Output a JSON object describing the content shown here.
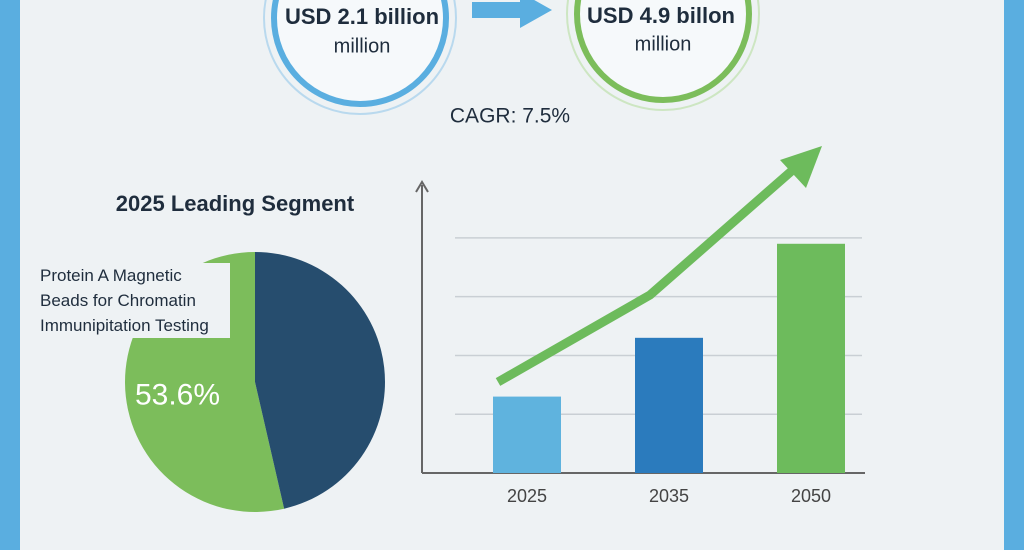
{
  "header": {
    "start_value": "USD 2.1 billion",
    "start_unit": "million",
    "end_value": "USD 4.9 billon",
    "end_unit": "million",
    "cagr": "CAGR: 7.5%"
  },
  "chart_data": [
    {
      "type": "pie",
      "title": "2025 Leading Segment",
      "categories": [
        "Protein A Magnetic Beads for Chromatin Immunipitation Testing",
        null
      ],
      "values": [
        53.6,
        46.4
      ],
      "value_labels": [
        "53.6%",
        null
      ],
      "colors": [
        "#7cbd5b",
        "#264d6e"
      ]
    },
    {
      "type": "bar",
      "categories": [
        "2025",
        "2035",
        "2050"
      ],
      "values": [
        1.3,
        2.3,
        3.9
      ],
      "colors": [
        "#5fb3de",
        "#2b7bbd",
        "#6dbb5c"
      ],
      "ylim": [
        0,
        4.9
      ],
      "yticks": [
        1,
        2,
        3,
        4
      ],
      "grid": true
    }
  ]
}
